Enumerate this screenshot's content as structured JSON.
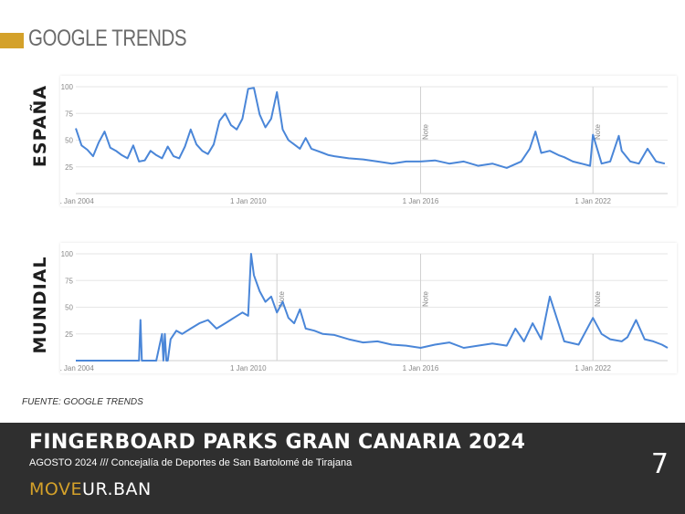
{
  "header": {
    "title": "GOOGLE TRENDS"
  },
  "source": "FUENTE: GOOGLE TRENDS",
  "footer": {
    "title": "FINGERBOARD PARKS GRAN CANARIA 2024",
    "subtitle": "AGOSTO 2024 /// Concejalía de Deportes de San Bartolomé de Tirajana",
    "brand_part1": "MOVE",
    "brand_part2": "UR.BAN",
    "page_number": "7"
  },
  "colors": {
    "accent": "#d4a12a",
    "line": "#4a86d8",
    "footer_bg": "#2f2f2f",
    "grid": "#e6e6e6"
  },
  "chart_data": [
    {
      "type": "line",
      "region_label": "ESPAÑA",
      "x_ticks": [
        "1 Jan 2004",
        "1 Jan 2010",
        "1 Jan 2016",
        "1 Jan 2022"
      ],
      "x_tick_years": [
        2004,
        2010,
        2016,
        2022
      ],
      "y_ticks": [
        25,
        50,
        75,
        100
      ],
      "ylim": [
        0,
        100
      ],
      "xlim": [
        2004,
        2024.6
      ],
      "grid": true,
      "notes": [
        {
          "x": 2016,
          "label": "Note"
        },
        {
          "x": 2022,
          "label": "Note"
        }
      ],
      "x": [
        2004.0,
        2004.2,
        2004.4,
        2004.6,
        2004.8,
        2005.0,
        2005.2,
        2005.4,
        2005.6,
        2005.8,
        2006.0,
        2006.2,
        2006.4,
        2006.6,
        2006.8,
        2007.0,
        2007.2,
        2007.4,
        2007.6,
        2007.8,
        2008.0,
        2008.2,
        2008.4,
        2008.6,
        2008.8,
        2009.0,
        2009.2,
        2009.4,
        2009.6,
        2009.8,
        2010.0,
        2010.2,
        2010.4,
        2010.6,
        2010.8,
        2011.0,
        2011.2,
        2011.4,
        2011.6,
        2011.8,
        2012.0,
        2012.2,
        2012.4,
        2012.6,
        2012.8,
        2013.0,
        2013.5,
        2014.0,
        2014.5,
        2015.0,
        2015.5,
        2016.0,
        2016.5,
        2017.0,
        2017.5,
        2018.0,
        2018.5,
        2019.0,
        2019.5,
        2019.8,
        2020.0,
        2020.2,
        2020.5,
        2020.8,
        2021.0,
        2021.3,
        2021.6,
        2021.9,
        2022.0,
        2022.3,
        2022.6,
        2022.9,
        2023.0,
        2023.3,
        2023.6,
        2023.9,
        2024.2,
        2024.5
      ],
      "values": [
        61,
        45,
        41,
        35,
        48,
        58,
        43,
        40,
        36,
        33,
        45,
        30,
        31,
        40,
        36,
        33,
        44,
        35,
        33,
        44,
        60,
        46,
        40,
        37,
        46,
        68,
        75,
        64,
        60,
        70,
        98,
        99,
        74,
        62,
        70,
        95,
        60,
        50,
        46,
        42,
        52,
        42,
        40,
        38,
        36,
        35,
        33,
        32,
        30,
        28,
        30,
        30,
        31,
        28,
        30,
        26,
        28,
        24,
        30,
        42,
        58,
        38,
        40,
        36,
        34,
        30,
        28,
        26,
        55,
        28,
        30,
        54,
        40,
        30,
        28,
        42,
        30,
        28
      ]
    },
    {
      "type": "line",
      "region_label": "MUNDIAL",
      "x_ticks": [
        "1 Jan 2004",
        "1 Jan 2010",
        "1 Jan 2016",
        "1 Jan 2022"
      ],
      "x_tick_years": [
        2004,
        2010,
        2016,
        2022
      ],
      "y_ticks": [
        25,
        50,
        75,
        100
      ],
      "ylim": [
        0,
        100
      ],
      "xlim": [
        2004,
        2024.6
      ],
      "grid": true,
      "notes": [
        {
          "x": 2011,
          "label": "Note"
        },
        {
          "x": 2016,
          "label": "Note"
        },
        {
          "x": 2022,
          "label": "Note"
        }
      ],
      "x": [
        2004.0,
        2005.0,
        2006.0,
        2006.2,
        2006.25,
        2006.3,
        2006.4,
        2006.8,
        2007.0,
        2007.05,
        2007.1,
        2007.15,
        2007.2,
        2007.3,
        2007.5,
        2007.7,
        2008.0,
        2008.3,
        2008.6,
        2008.9,
        2009.2,
        2009.5,
        2009.8,
        2010.0,
        2010.1,
        2010.2,
        2010.4,
        2010.6,
        2010.8,
        2011.0,
        2011.2,
        2011.4,
        2011.6,
        2011.8,
        2012.0,
        2012.3,
        2012.6,
        2013.0,
        2013.5,
        2014.0,
        2014.5,
        2015.0,
        2015.5,
        2016.0,
        2016.5,
        2017.0,
        2017.5,
        2018.0,
        2018.5,
        2019.0,
        2019.3,
        2019.6,
        2019.9,
        2020.2,
        2020.5,
        2021.0,
        2021.5,
        2022.0,
        2022.3,
        2022.6,
        2023.0,
        2023.2,
        2023.5,
        2023.8,
        2024.1,
        2024.4,
        2024.6
      ],
      "values": [
        0,
        0,
        0,
        0,
        38,
        0,
        0,
        0,
        25,
        0,
        25,
        0,
        0,
        20,
        28,
        25,
        30,
        35,
        38,
        30,
        35,
        40,
        45,
        42,
        100,
        80,
        65,
        55,
        60,
        45,
        55,
        40,
        35,
        48,
        30,
        28,
        25,
        24,
        20,
        17,
        18,
        15,
        14,
        12,
        15,
        17,
        12,
        14,
        16,
        14,
        30,
        18,
        35,
        20,
        60,
        18,
        15,
        40,
        25,
        20,
        18,
        22,
        38,
        20,
        18,
        15,
        12
      ]
    }
  ]
}
